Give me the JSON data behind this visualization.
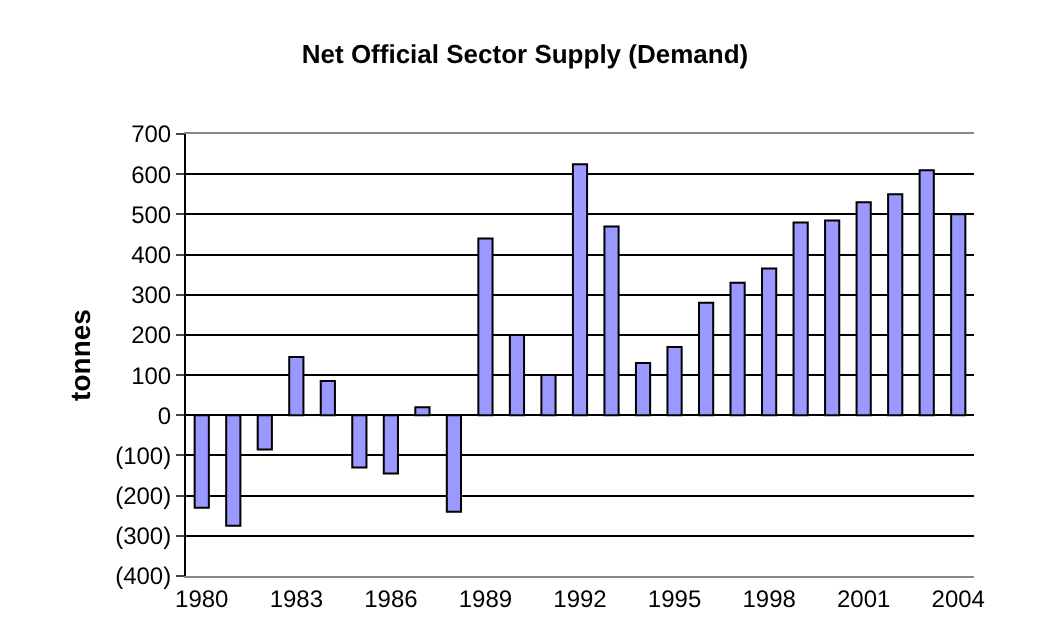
{
  "chart_data": {
    "type": "bar",
    "title": "Net Official Sector Supply (Demand)",
    "ylabel": "tonnes",
    "categories": [
      "1980",
      null,
      null,
      "1983",
      null,
      null,
      "1986",
      null,
      null,
      "1989",
      null,
      null,
      "1992",
      null,
      null,
      "1995",
      null,
      null,
      "1998",
      null,
      null,
      "2001",
      null,
      null,
      "2004"
    ],
    "values": [
      -230,
      -275,
      -85,
      145,
      85,
      -130,
      -145,
      20,
      -240,
      440,
      200,
      100,
      625,
      470,
      130,
      170,
      280,
      330,
      365,
      480,
      485,
      530,
      550,
      610,
      500
    ],
    "color": "#9999ff",
    "ylim": [
      -400,
      700
    ],
    "yticks": [
      {
        "value": -400,
        "label": "(400)"
      },
      {
        "value": -300,
        "label": "(300)"
      },
      {
        "value": -200,
        "label": "(200)"
      },
      {
        "value": -100,
        "label": "(100)"
      },
      0,
      100,
      200,
      300,
      400,
      500,
      600,
      700
    ],
    "grid": "y"
  }
}
